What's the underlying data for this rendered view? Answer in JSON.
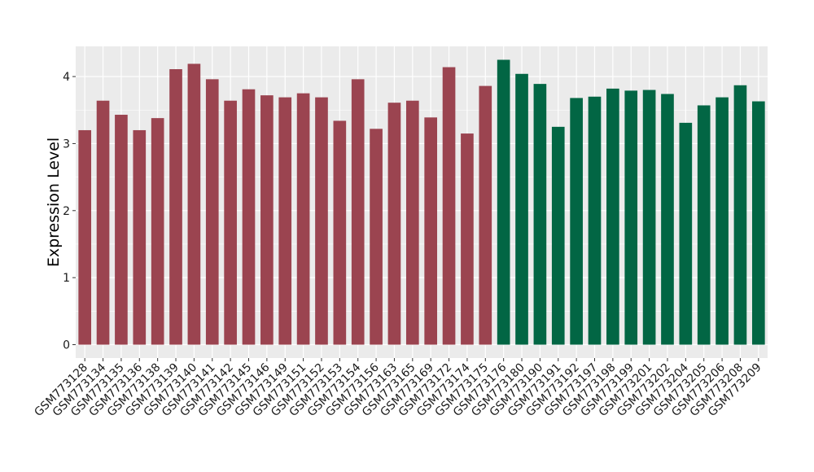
{
  "chart_data": {
    "type": "bar",
    "title": "",
    "xlabel": "",
    "ylabel": "Expression Level",
    "ylim": [
      -0.2,
      4.45
    ],
    "yticks": [
      0,
      1,
      2,
      3,
      4
    ],
    "grid": true,
    "legend": "none",
    "panel_background": "#ebebeb",
    "grid_color": "#ffffff",
    "colors": [
      "#9b4450",
      "#026644"
    ],
    "categories": [
      "GSM773128",
      "GSM773134",
      "GSM773135",
      "GSM773136",
      "GSM773138",
      "GSM773139",
      "GSM773140",
      "GSM773141",
      "GSM773142",
      "GSM773145",
      "GSM773146",
      "GSM773149",
      "GSM773151",
      "GSM773152",
      "GSM773153",
      "GSM773154",
      "GSM773156",
      "GSM773163",
      "GSM773165",
      "GSM773169",
      "GSM773172",
      "GSM773174",
      "GSM773175",
      "GSM773176",
      "GSM773180",
      "GSM773190",
      "GSM773191",
      "GSM773192",
      "GSM773197",
      "GSM773198",
      "GSM773199",
      "GSM773201",
      "GSM773202",
      "GSM773204",
      "GSM773205",
      "GSM773206",
      "GSM773208",
      "GSM773209"
    ],
    "values": [
      3.2,
      3.64,
      3.43,
      3.2,
      3.38,
      4.11,
      4.19,
      3.96,
      3.64,
      3.81,
      3.72,
      3.69,
      3.75,
      3.69,
      3.34,
      3.96,
      3.22,
      3.61,
      3.64,
      3.39,
      4.14,
      3.15,
      3.86,
      4.25,
      4.04,
      3.89,
      3.25,
      3.68,
      3.7,
      3.82,
      3.79,
      3.8,
      3.74,
      3.31,
      3.57,
      3.69,
      3.87,
      3.63
    ],
    "groups": [
      0,
      0,
      0,
      0,
      0,
      0,
      0,
      0,
      0,
      0,
      0,
      0,
      0,
      0,
      0,
      0,
      0,
      0,
      0,
      0,
      0,
      0,
      0,
      1,
      1,
      1,
      1,
      1,
      1,
      1,
      1,
      1,
      1,
      1,
      1,
      1,
      1,
      1
    ]
  }
}
